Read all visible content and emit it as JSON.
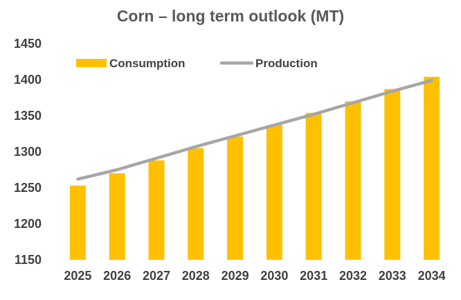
{
  "chart_data": {
    "type": "bar",
    "title": "Corn – long term outlook (MT)",
    "xlabel": "",
    "ylabel": "",
    "categories": [
      "2025",
      "2026",
      "2027",
      "2028",
      "2029",
      "2030",
      "2031",
      "2032",
      "2033",
      "2034"
    ],
    "ylim": [
      1150,
      1450
    ],
    "yticks": [
      1150,
      1200,
      1250,
      1300,
      1350,
      1400,
      1450
    ],
    "grid": false,
    "legend_position": "top-left",
    "series": [
      {
        "name": "Consumption",
        "type": "bar",
        "color": "#FFC000",
        "values": [
          1253,
          1270,
          1288,
          1305,
          1321,
          1337,
          1354,
          1370,
          1387,
          1404
        ]
      },
      {
        "name": "Production",
        "type": "line",
        "color": "#A6A6A6",
        "values": [
          1262,
          1275,
          1291,
          1307,
          1322,
          1337,
          1352,
          1368,
          1384,
          1399
        ]
      }
    ]
  }
}
